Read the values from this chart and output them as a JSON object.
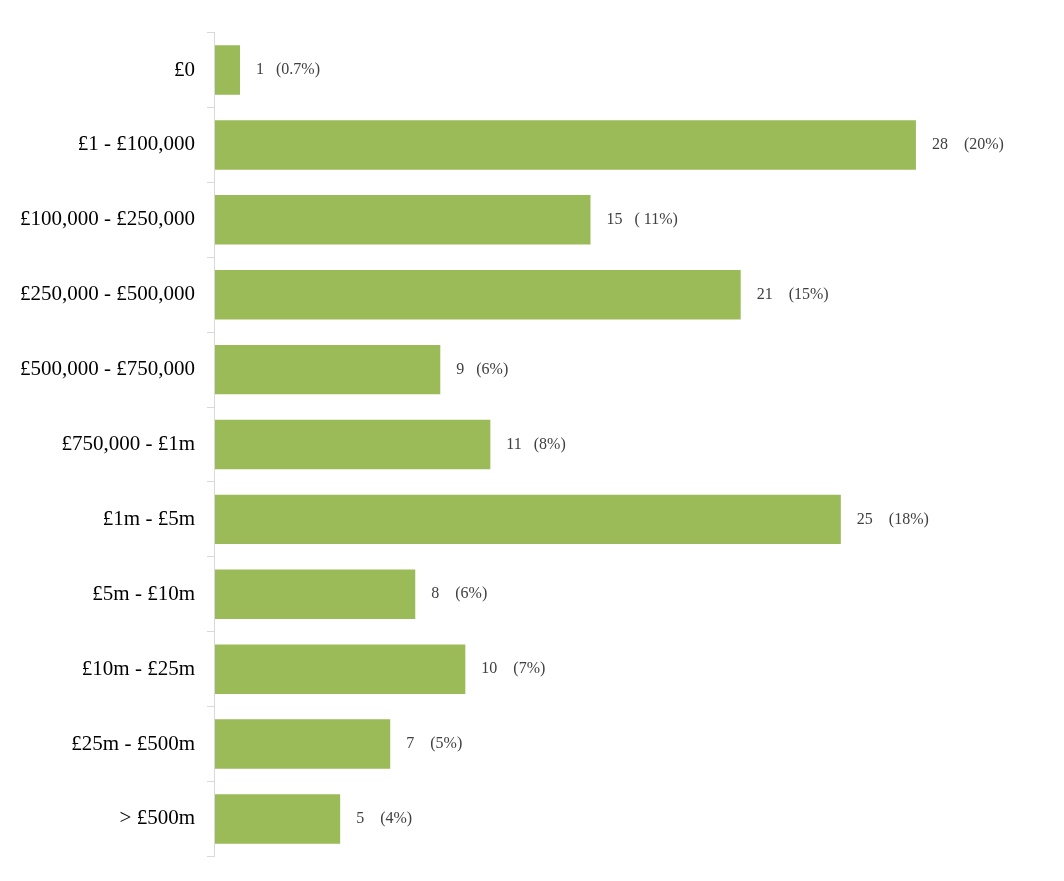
{
  "chart_data": {
    "type": "bar",
    "orientation": "horizontal",
    "categories": [
      "£0",
      "£1 - £100,000",
      "£100,000 - £250,000",
      "£250,000 - £500,000",
      "£500,000 - £750,000",
      "£750,000 - £1m",
      "£1m - £5m",
      "£5m - £10m",
      "£10m - £25m",
      "£25m - £500m",
      "> £500m"
    ],
    "values": [
      1,
      28,
      15,
      21,
      9,
      11,
      25,
      8,
      10,
      7,
      5
    ],
    "color": "#9bbb59",
    "value_labels": [
      "1   (0.7%)",
      "28    (20%)",
      "15   ( 11%)",
      "21    (15%)",
      "9   (6%)",
      "11   (8%)",
      "25    (18%)",
      "8    (6%)",
      "10    (7%)",
      "7    (5%)",
      "5    (4%)"
    ],
    "tick_labels": "y",
    "legend": false
  }
}
